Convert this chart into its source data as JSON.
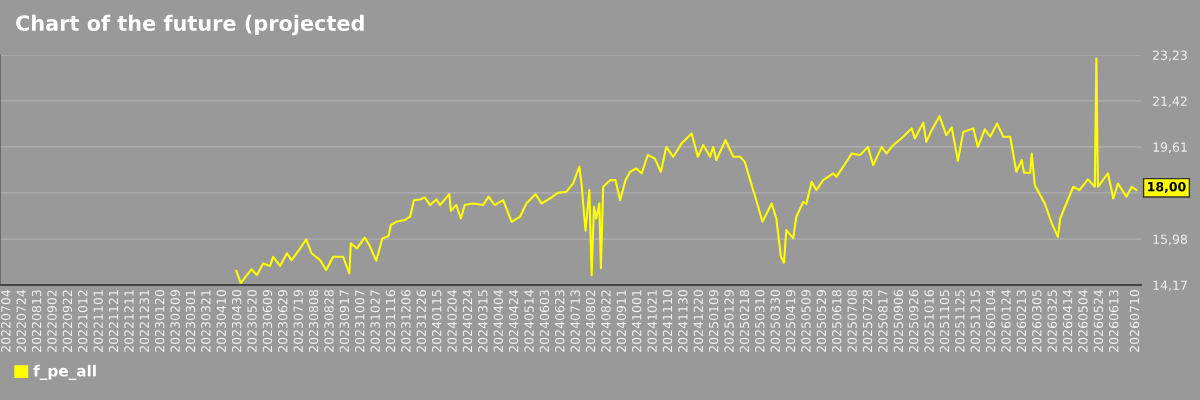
{
  "chart_data": {
    "type": "line",
    "title": "Chart of the future (projected",
    "x": [
      "2023-04-28",
      "2023-05-04",
      "2023-05-09",
      "2023-05-18",
      "2023-05-25",
      "2023-06-02",
      "2023-06-11",
      "2023-06-15",
      "2023-06-24",
      "2023-07-03",
      "2023-07-09",
      "2023-07-18",
      "2023-07-28",
      "2023-08-04",
      "2023-08-15",
      "2023-08-23",
      "2023-09-01",
      "2023-09-14",
      "2023-09-22",
      "2023-09-24",
      "2023-10-02",
      "2023-10-12",
      "2023-10-18",
      "2023-10-27",
      "2023-11-04",
      "2023-11-12",
      "2023-11-15",
      "2023-11-22",
      "2023-12-03",
      "2023-12-10",
      "2023-12-15",
      "2023-12-23",
      "2023-12-29",
      "2024-01-05",
      "2024-01-13",
      "2024-01-18",
      "2024-01-30",
      "2024-02-01",
      "2024-02-08",
      "2024-02-14",
      "2024-02-19",
      "2024-03-01",
      "2024-03-14",
      "2024-03-21",
      "2024-03-29",
      "2024-04-09",
      "2024-04-20",
      "2024-05-01",
      "2024-05-09",
      "2024-05-21",
      "2024-05-29",
      "2024-06-09",
      "2024-06-19",
      "2024-06-30",
      "2024-07-09",
      "2024-07-17",
      "2024-07-20",
      "2024-07-25",
      "2024-07-30",
      "2024-08-02",
      "2024-08-05",
      "2024-08-08",
      "2024-08-12",
      "2024-08-14",
      "2024-08-17",
      "2024-08-26",
      "2024-09-02",
      "2024-09-08",
      "2024-09-15",
      "2024-09-21",
      "2024-09-29",
      "2024-10-06",
      "2024-10-14",
      "2024-10-23",
      "2024-10-31",
      "2024-11-07",
      "2024-11-16",
      "2024-11-27",
      "2024-12-10",
      "2024-12-18",
      "2024-12-25",
      "2025-01-03",
      "2025-01-07",
      "2025-01-11",
      "2025-01-23",
      "2025-02-02",
      "2025-02-11",
      "2025-02-17",
      "2025-02-24",
      "2025-03-04",
      "2025-03-12",
      "2025-03-24",
      "2025-03-30",
      "2025-04-05",
      "2025-04-09",
      "2025-04-12",
      "2025-04-21",
      "2025-04-25",
      "2025-05-04",
      "2025-05-08",
      "2025-05-15",
      "2025-05-21",
      "2025-05-30",
      "2025-06-12",
      "2025-06-16",
      "2025-06-25",
      "2025-07-06",
      "2025-07-17",
      "2025-07-27",
      "2025-08-03",
      "2025-08-14",
      "2025-08-20",
      "2025-08-29",
      "2025-09-11",
      "2025-09-22",
      "2025-09-26",
      "2025-10-07",
      "2025-10-11",
      "2025-10-18",
      "2025-10-28",
      "2025-11-06",
      "2025-11-13",
      "2025-11-21",
      "2025-11-28",
      "2025-12-11",
      "2025-12-17",
      "2025-12-26",
      "2026-01-02",
      "2026-01-11",
      "2026-01-19",
      "2026-01-28",
      "2026-02-05",
      "2026-02-12",
      "2026-02-15",
      "2026-02-23",
      "2026-02-25",
      "2026-03-01",
      "2026-03-14",
      "2026-03-23",
      "2026-03-31",
      "2026-04-03",
      "2026-04-11",
      "2026-04-20",
      "2026-04-28",
      "2026-05-09",
      "2026-05-18",
      "2026-05-20",
      "2026-05-22",
      "2026-06-04",
      "2026-06-11",
      "2026-06-17",
      "2026-06-28",
      "2026-07-05",
      "2026-07-11"
    ],
    "series": [
      {
        "name": "f_pe_all",
        "color": "#ffff00",
        "values": [
          14.73,
          14.24,
          14.45,
          14.79,
          14.56,
          15.02,
          14.92,
          15.28,
          14.92,
          15.42,
          15.15,
          15.52,
          15.97,
          15.42,
          15.15,
          14.76,
          15.28,
          15.28,
          14.63,
          15.81,
          15.61,
          16.04,
          15.74,
          15.13,
          16.0,
          16.1,
          16.53,
          16.66,
          16.73,
          16.86,
          17.51,
          17.54,
          17.62,
          17.32,
          17.54,
          17.32,
          17.75,
          17.09,
          17.32,
          16.79,
          17.32,
          17.38,
          17.32,
          17.65,
          17.32,
          17.51,
          16.66,
          16.86,
          17.38,
          17.75,
          17.38,
          17.58,
          17.8,
          17.84,
          18.17,
          18.83,
          18.1,
          16.31,
          17.91,
          14.56,
          17.25,
          16.79,
          17.38,
          14.83,
          18.04,
          18.3,
          18.3,
          17.51,
          18.3,
          18.63,
          18.76,
          18.57,
          19.29,
          19.16,
          18.63,
          19.61,
          19.22,
          19.75,
          20.14,
          19.22,
          19.68,
          19.22,
          19.61,
          19.09,
          19.88,
          19.22,
          19.22,
          19.02,
          18.3,
          17.51,
          16.66,
          17.38,
          16.79,
          15.28,
          15.05,
          16.33,
          16.01,
          16.86,
          17.45,
          17.36,
          18.24,
          17.91,
          18.3,
          18.57,
          18.43,
          18.83,
          19.35,
          19.29,
          19.61,
          18.89,
          19.61,
          19.35,
          19.68,
          20.01,
          20.34,
          19.94,
          20.56,
          19.81,
          20.27,
          20.82,
          20.07,
          20.38,
          19.06,
          20.2,
          20.34,
          19.61,
          20.3,
          20.01,
          20.53,
          20.01,
          20.01,
          18.63,
          19.09,
          18.59,
          18.59,
          19.35,
          18.1,
          17.38,
          16.6,
          16.07,
          16.79,
          17.38,
          18.04,
          17.91,
          18.33,
          18.04,
          23.09,
          18.04,
          18.57,
          17.58,
          18.17,
          17.65,
          18.04,
          17.91
        ]
      }
    ],
    "xlim": [
      "2022-06-25",
      "2026-07-17"
    ],
    "xticks": [
      {
        "value": "2022-07-04",
        "label": "20220704"
      },
      {
        "value": "2022-07-24",
        "label": "20220724"
      },
      {
        "value": "2022-08-13",
        "label": "20220813"
      },
      {
        "value": "2022-09-02",
        "label": "20220902"
      },
      {
        "value": "2022-09-22",
        "label": "20220922"
      },
      {
        "value": "2022-10-12",
        "label": "20221012"
      },
      {
        "value": "2022-11-01",
        "label": "20221101"
      },
      {
        "value": "2022-11-21",
        "label": "20221121"
      },
      {
        "value": "2022-12-11",
        "label": "20221211"
      },
      {
        "value": "2022-12-31",
        "label": "20221231"
      },
      {
        "value": "2023-01-20",
        "label": "20230120"
      },
      {
        "value": "2023-02-09",
        "label": "20230209"
      },
      {
        "value": "2023-03-01",
        "label": "20230301"
      },
      {
        "value": "2023-03-21",
        "label": "20230321"
      },
      {
        "value": "2023-04-10",
        "label": "20230410"
      },
      {
        "value": "2023-04-30",
        "label": "20230430"
      },
      {
        "value": "2023-05-20",
        "label": "20230520"
      },
      {
        "value": "2023-06-09",
        "label": "20230609"
      },
      {
        "value": "2023-06-29",
        "label": "20230629"
      },
      {
        "value": "2023-07-19",
        "label": "20230719"
      },
      {
        "value": "2023-08-08",
        "label": "20230808"
      },
      {
        "value": "2023-08-28",
        "label": "20230828"
      },
      {
        "value": "2023-09-17",
        "label": "20230917"
      },
      {
        "value": "2023-10-07",
        "label": "20231007"
      },
      {
        "value": "2023-10-27",
        "label": "20231027"
      },
      {
        "value": "2023-11-16",
        "label": "20231116"
      },
      {
        "value": "2023-12-06",
        "label": "20231206"
      },
      {
        "value": "2023-12-26",
        "label": "20231226"
      },
      {
        "value": "2024-01-15",
        "label": "20240115"
      },
      {
        "value": "2024-02-04",
        "label": "20240204"
      },
      {
        "value": "2024-02-24",
        "label": "20240224"
      },
      {
        "value": "2024-03-15",
        "label": "20240315"
      },
      {
        "value": "2024-04-04",
        "label": "20240404"
      },
      {
        "value": "2024-04-24",
        "label": "20240424"
      },
      {
        "value": "2024-05-14",
        "label": "20240514"
      },
      {
        "value": "2024-06-03",
        "label": "20240603"
      },
      {
        "value": "2024-06-23",
        "label": "20240623"
      },
      {
        "value": "2024-07-13",
        "label": "20240713"
      },
      {
        "value": "2024-08-02",
        "label": "20240802"
      },
      {
        "value": "2024-08-22",
        "label": "20240822"
      },
      {
        "value": "2024-09-11",
        "label": "20240911"
      },
      {
        "value": "2024-10-01",
        "label": "20241001"
      },
      {
        "value": "2024-10-21",
        "label": "20241021"
      },
      {
        "value": "2024-11-10",
        "label": "20241110"
      },
      {
        "value": "2024-11-30",
        "label": "20241130"
      },
      {
        "value": "2024-12-20",
        "label": "20241220"
      },
      {
        "value": "2025-01-09",
        "label": "20250109"
      },
      {
        "value": "2025-01-29",
        "label": "20250129"
      },
      {
        "value": "2025-02-18",
        "label": "20250218"
      },
      {
        "value": "2025-03-10",
        "label": "20250310"
      },
      {
        "value": "2025-03-30",
        "label": "20250330"
      },
      {
        "value": "2025-04-19",
        "label": "20250419"
      },
      {
        "value": "2025-05-09",
        "label": "20250509"
      },
      {
        "value": "2025-05-29",
        "label": "20250529"
      },
      {
        "value": "2025-06-18",
        "label": "20250618"
      },
      {
        "value": "2025-07-08",
        "label": "20250708"
      },
      {
        "value": "2025-07-28",
        "label": "20250728"
      },
      {
        "value": "2025-08-17",
        "label": "20250817"
      },
      {
        "value": "2025-09-06",
        "label": "20250906"
      },
      {
        "value": "2025-09-26",
        "label": "20250926"
      },
      {
        "value": "2025-10-16",
        "label": "20251016"
      },
      {
        "value": "2025-11-05",
        "label": "20251105"
      },
      {
        "value": "2025-11-25",
        "label": "20251125"
      },
      {
        "value": "2025-12-15",
        "label": "20251215"
      },
      {
        "value": "2026-01-04",
        "label": "20260104"
      },
      {
        "value": "2026-01-24",
        "label": "20260124"
      },
      {
        "value": "2026-02-13",
        "label": "20260213"
      },
      {
        "value": "2026-03-05",
        "label": "20260305"
      },
      {
        "value": "2026-03-25",
        "label": "20260325"
      },
      {
        "value": "2026-04-14",
        "label": "20260414"
      },
      {
        "value": "2026-05-04",
        "label": "20260504"
      },
      {
        "value": "2026-05-24",
        "label": "20260524"
      },
      {
        "value": "2026-06-13",
        "label": "20260613"
      },
      {
        "value": "2026-07-10",
        "label": "20260710"
      }
    ],
    "ylim": [
      14.17,
      23.23
    ],
    "yticks": [
      {
        "value": 14.17,
        "label": "14,17"
      },
      {
        "value": 15.98,
        "label": "15,98"
      },
      {
        "value": 17.8,
        "label": null
      },
      {
        "value": 19.61,
        "label": "19,61"
      },
      {
        "value": 21.42,
        "label": "21,42"
      },
      {
        "value": 23.23,
        "label": "23,23"
      }
    ],
    "annotations": [
      {
        "text": "18,00",
        "x": "2026-07-11",
        "y": 18
      }
    ],
    "grid": "y",
    "legend": "bottom left",
    "line_style": "solid",
    "marker": "none"
  }
}
